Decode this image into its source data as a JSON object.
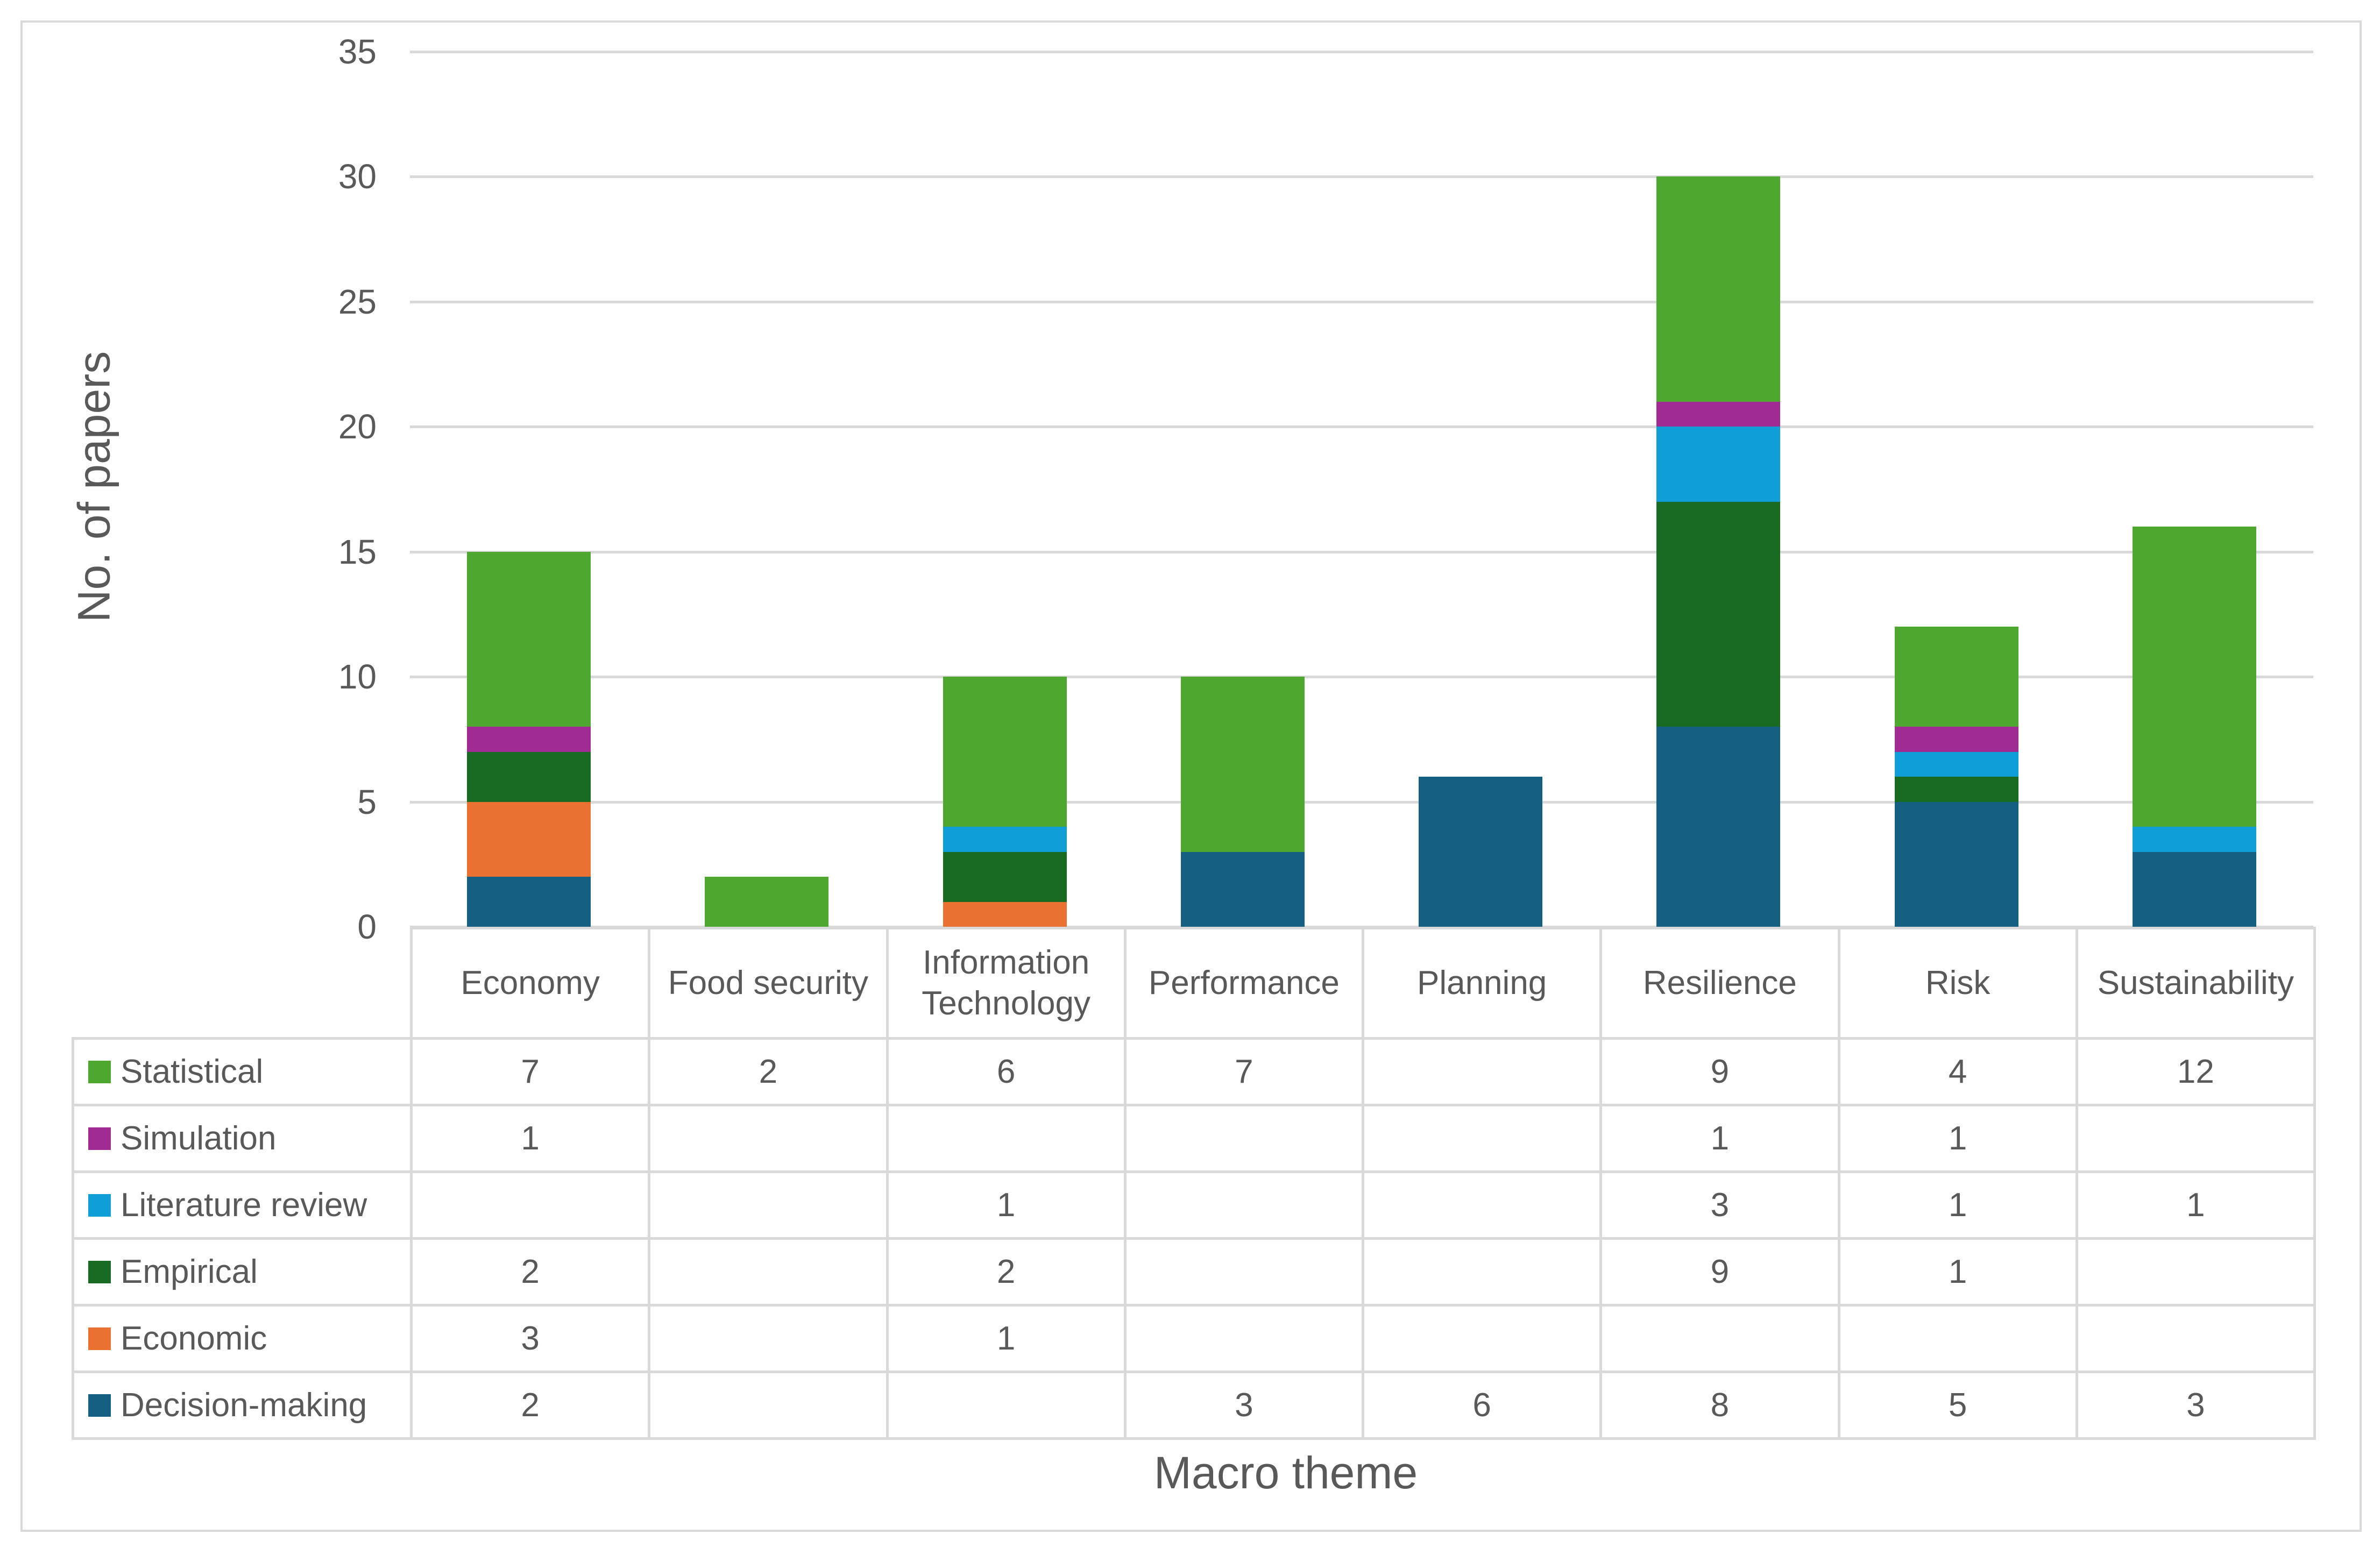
{
  "chart_data": {
    "type": "bar",
    "stacked": true,
    "categories": [
      "Economy",
      "Food security",
      "Information Technology",
      "Performance",
      "Planning",
      "Resilience",
      "Risk",
      "Sustainability"
    ],
    "series": [
      {
        "name": "Decision-making",
        "color": "#156082",
        "values": [
          2,
          null,
          null,
          3,
          6,
          8,
          5,
          3
        ]
      },
      {
        "name": "Economic",
        "color": "#E97132",
        "values": [
          3,
          null,
          1,
          null,
          null,
          null,
          null,
          null
        ]
      },
      {
        "name": "Empirical",
        "color": "#196B24",
        "values": [
          2,
          null,
          2,
          null,
          null,
          9,
          1,
          null
        ]
      },
      {
        "name": "Literature review",
        "color": "#0F9ED5",
        "values": [
          null,
          null,
          1,
          null,
          null,
          3,
          1,
          1
        ]
      },
      {
        "name": "Simulation",
        "color": "#A02B93",
        "values": [
          1,
          null,
          null,
          null,
          null,
          1,
          1,
          null
        ]
      },
      {
        "name": "Statistical",
        "color": "#4EA72E",
        "values": [
          7,
          2,
          6,
          7,
          null,
          9,
          4,
          12
        ]
      }
    ],
    "table_row_order": [
      "Statistical",
      "Simulation",
      "Literature review",
      "Empirical",
      "Economic",
      "Decision-making"
    ],
    "xlabel": "Macro theme",
    "ylabel": "No. of papers",
    "ylim": [
      0,
      35
    ],
    "ytick_step": 5,
    "grid": true,
    "legend_position": "table-left",
    "colors": {
      "grid": "#d9d9d9",
      "text": "#595959",
      "figure_border": "#d9d9d9"
    }
  }
}
